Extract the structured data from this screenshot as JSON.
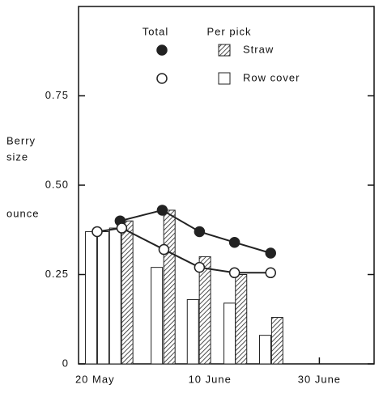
{
  "chart_data": {
    "type": "bar_line",
    "y_label": [
      "Berry",
      "size"
    ],
    "y_unit": "ounce",
    "legend": {
      "headers": [
        "Total",
        "Per pick"
      ]
    },
    "xlim": [
      17,
      71
    ],
    "xticks": [
      {
        "value": 20,
        "label": "20 May"
      },
      {
        "value": 41,
        "label": "10 June"
      },
      {
        "value": 61,
        "label": "30 June"
      }
    ],
    "ylim": [
      0,
      1.0
    ],
    "yticks": [
      0,
      0.25,
      {
        "value": 0.5,
        "label": "0.50"
      },
      0.75
    ],
    "series": [
      {
        "name": "Straw",
        "color": "#222",
        "per_pick": {
          "x": [
            25.9,
            33.6,
            40.1,
            46.7,
            53.3
          ],
          "values": [
            0.4,
            0.43,
            0.3,
            0.25,
            0.13
          ]
        },
        "total": {
          "x": [
            24.6,
            32.3,
            39.1,
            45.5,
            52.1
          ],
          "values": [
            0.4,
            0.43,
            0.37,
            0.34,
            0.31
          ]
        }
      },
      {
        "name": "Row cover",
        "color": "#222",
        "per_pick": {
          "x": [
            19.3,
            21.5,
            23.7,
            31.3,
            37.9,
            44.6,
            51.1
          ],
          "values": [
            0.37,
            0.37,
            0.38,
            0.27,
            0.18,
            0.17,
            0.08
          ]
        },
        "total": {
          "x": [
            20.4,
            24.9,
            32.6,
            39.1,
            45.5,
            52.1
          ],
          "values": [
            0.37,
            0.38,
            0.32,
            0.27,
            0.255,
            0.255
          ]
        }
      }
    ]
  }
}
